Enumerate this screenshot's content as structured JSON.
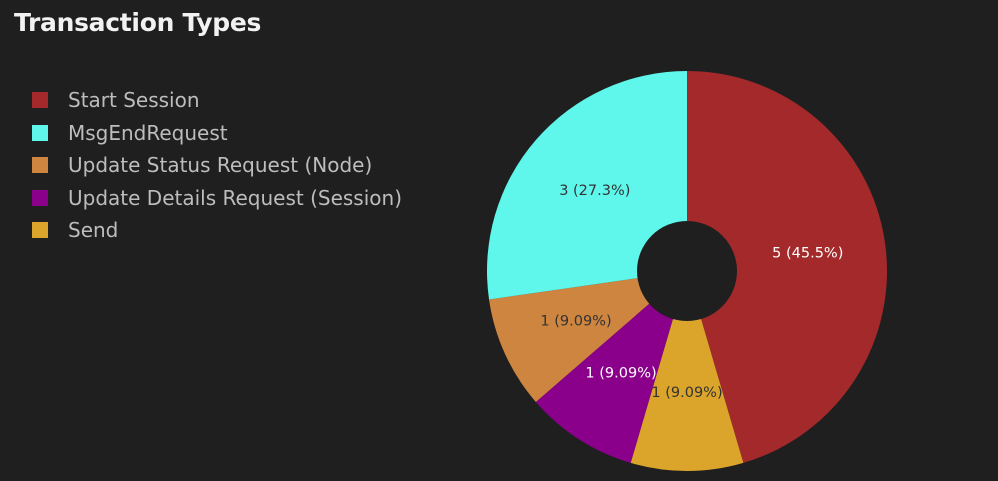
{
  "chart_data": {
    "type": "pie",
    "title": "Transaction Types",
    "donut": true,
    "legend_position": "left",
    "slices": [
      {
        "name": "Start Session",
        "value": 5,
        "label": "5 (45.5%)",
        "color": "#a4292b",
        "label_color": "#ffffff"
      },
      {
        "name": "Send",
        "value": 1,
        "label": "1 (9.09%)",
        "color": "#daa52a",
        "label_color": "#333333"
      },
      {
        "name": "Update Details Request (Session)",
        "value": 1,
        "label": "1 (9.09%)",
        "color": "#8b008b",
        "label_color": "#ffffff"
      },
      {
        "name": "Update Status Request (Node)",
        "value": 1,
        "label": "1 (9.09%)",
        "color": "#cd853f",
        "label_color": "#333333"
      },
      {
        "name": "MsgEndRequest",
        "value": 3,
        "label": "3 (27.3%)",
        "color": "#5ff7eb",
        "label_color": "#333333"
      }
    ],
    "legend": [
      {
        "name": "Start Session",
        "color": "#a4292b"
      },
      {
        "name": "MsgEndRequest",
        "color": "#5ff7eb"
      },
      {
        "name": "Update Status Request (Node)",
        "color": "#cd853f"
      },
      {
        "name": "Update Details Request (Session)",
        "color": "#8b008b"
      },
      {
        "name": "Send",
        "color": "#daa52a"
      }
    ]
  }
}
